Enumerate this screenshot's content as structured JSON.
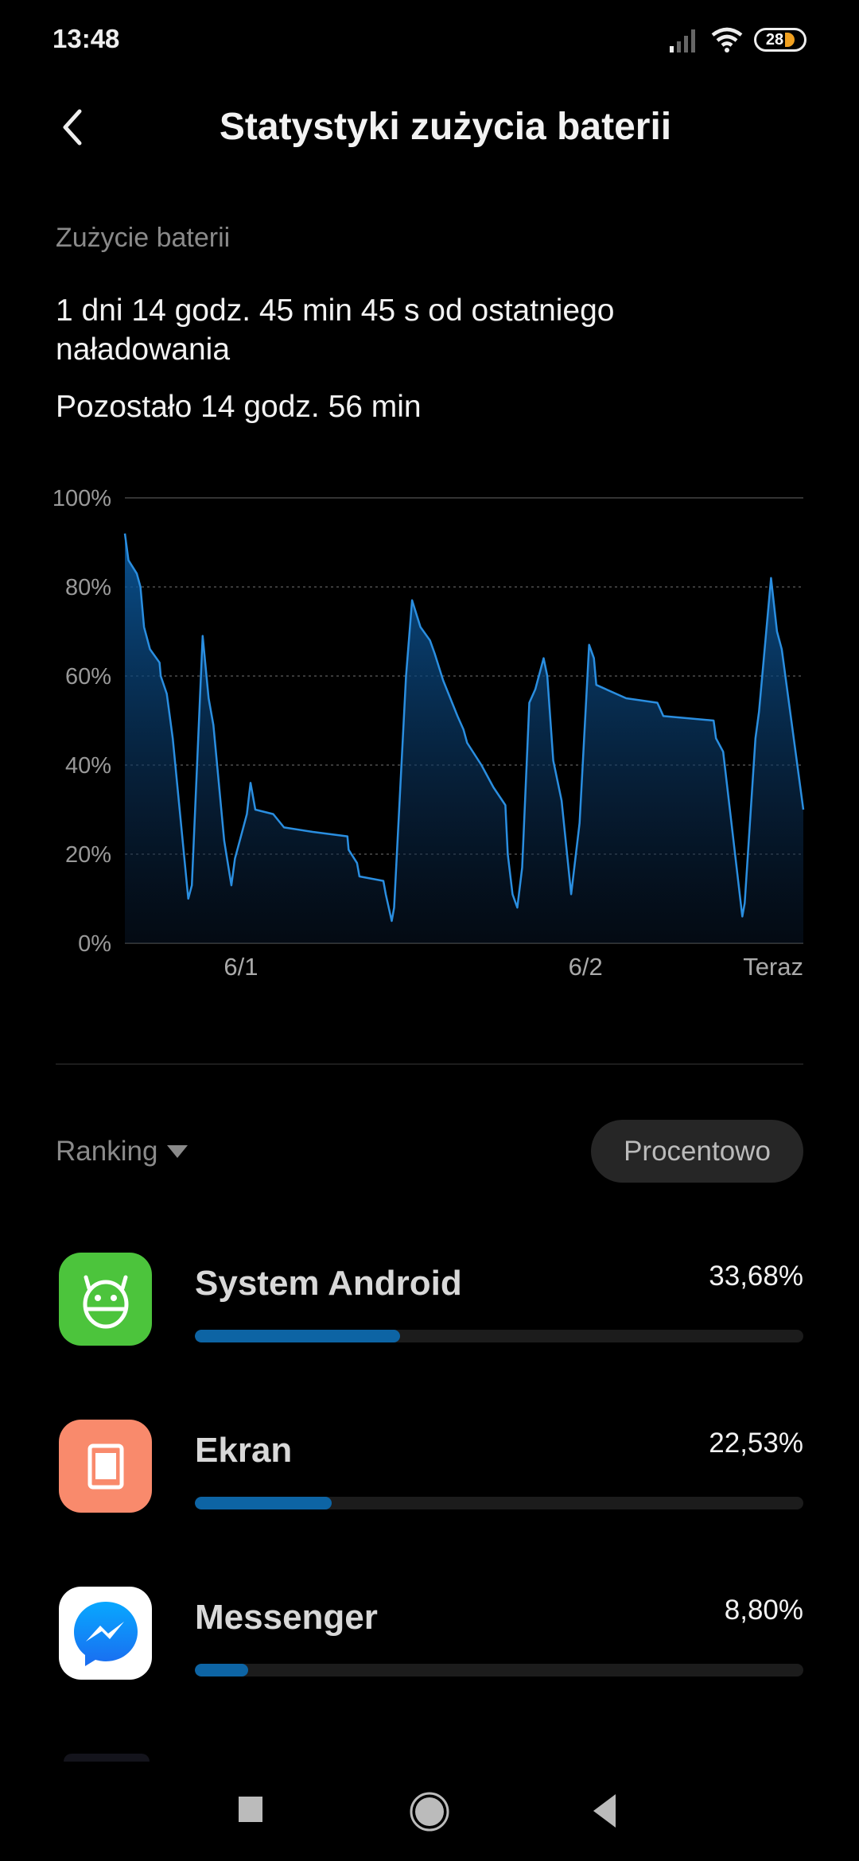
{
  "status_bar": {
    "time": "13:48",
    "battery_level": "28",
    "battery_color": "#f0a020",
    "icons": [
      "signal-icon",
      "wifi-icon",
      "battery-icon"
    ]
  },
  "header": {
    "title": "Statystyki zużycia baterii",
    "back_icon": "back-arrow-icon"
  },
  "usage": {
    "section_label": "Zużycie baterii",
    "since_charge": "1 dni 14 godz. 45 min 45 s od ostatniego naładowania",
    "remaining": "Pozostało 14 godz. 56 min"
  },
  "chart_data": {
    "type": "area",
    "ylim": [
      0,
      100
    ],
    "yticks": [
      "100%",
      "80%",
      "60%",
      "40%",
      "20%",
      "0%"
    ],
    "ytick_values": [
      100,
      80,
      60,
      40,
      20,
      0
    ],
    "xticks": [
      {
        "label": "6/1",
        "x": "6/1 00:00"
      },
      {
        "label": "6/2",
        "x": "6/2 00:00"
      },
      {
        "label": "Teraz",
        "x": "6/2 15:10"
      }
    ],
    "grid": true,
    "line_color": "#2a8ee0",
    "x": [
      "5/31 15:55",
      "5/31 16:10",
      "5/31 16:45",
      "5/31 17:00",
      "5/31 17:15",
      "5/31 17:40",
      "5/31 18:20",
      "5/31 18:25",
      "5/31 18:50",
      "5/31 19:15",
      "5/31 20:20",
      "5/31 20:35",
      "5/31 21:20",
      "5/31 21:45",
      "5/31 22:05",
      "5/31 22:50",
      "5/31 23:20",
      "5/31 23:35",
      "6/1 00:10",
      "6/1 00:25",
      "6/1 00:40",
      "6/1 01:00",
      "6/1 02:15",
      "6/1 03:00",
      "6/1 05:00",
      "6/1 07:25",
      "6/1 07:30",
      "6/1 08:05",
      "6/1 08:15",
      "6/1 09:55",
      "6/1 10:05",
      "6/1 10:30",
      "6/1 10:40",
      "6/1 11:30",
      "6/1 11:55",
      "6/1 12:30",
      "6/1 13:10",
      "6/1 13:30",
      "6/1 14:05",
      "6/1 15:05",
      "6/1 15:30",
      "6/1 15:45",
      "6/1 16:45",
      "6/1 17:35",
      "6/1 18:25",
      "6/1 18:35",
      "6/1 18:55",
      "6/1 19:15",
      "6/1 19:35",
      "6/1 20:05",
      "6/1 20:30",
      "6/1 21:05",
      "6/1 21:20",
      "6/1 21:45",
      "6/1 22:20",
      "6/1 23:00",
      "6/1 23:35",
      "6/2 00:15",
      "6/2 00:35",
      "6/2 00:45",
      "6/2 02:50",
      "6/2 05:00",
      "6/2 05:25",
      "6/2 08:55",
      "6/2 09:05",
      "6/2 09:35",
      "6/2 10:55",
      "6/2 11:05",
      "6/2 11:50",
      "6/2 12:05",
      "6/2 12:55",
      "6/2 13:20",
      "6/2 13:40",
      "6/2 15:10"
    ],
    "values": [
      92,
      86,
      83,
      80,
      71,
      66,
      63,
      60,
      56,
      46,
      10,
      13,
      69,
      55,
      49,
      23,
      13,
      19,
      26,
      29,
      36,
      30,
      29,
      26,
      25,
      24,
      21,
      18,
      15,
      14,
      11,
      5,
      8,
      60,
      77,
      71,
      68,
      65,
      59,
      51,
      48,
      45,
      40,
      35,
      31,
      20,
      11,
      8,
      17,
      54,
      57,
      64,
      60,
      41,
      32,
      11,
      27,
      67,
      64,
      58,
      55,
      54,
      51,
      50,
      46,
      43,
      6,
      9,
      46,
      52,
      82,
      70,
      66,
      30
    ]
  },
  "ranking": {
    "label": "Ranking",
    "mode_button": "Procentowo"
  },
  "apps": [
    {
      "name": "System Android",
      "percent_text": "33,68%",
      "percent": 33.68,
      "icon": "android-icon",
      "icon_bg": "#4cc43c"
    },
    {
      "name": "Ekran",
      "percent_text": "22,53%",
      "percent": 22.53,
      "icon": "screen-icon",
      "icon_bg": "#f98a6c"
    },
    {
      "name": "Messenger",
      "percent_text": "8,80%",
      "percent": 8.8,
      "icon": "messenger-icon",
      "icon_bg": "#ffffff"
    }
  ],
  "nav_bar": {
    "icons": [
      "recents-icon",
      "home-icon",
      "back-icon"
    ]
  }
}
